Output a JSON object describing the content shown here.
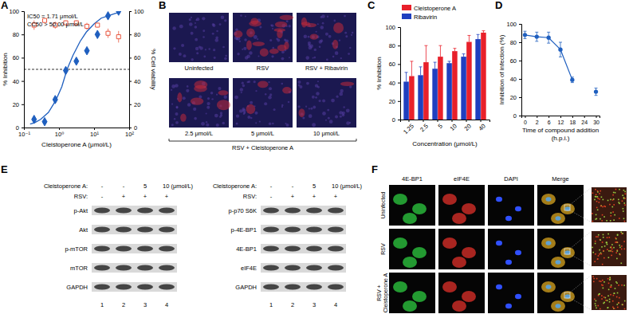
{
  "panel_labels": [
    "A",
    "B",
    "C",
    "D",
    "E",
    "F"
  ],
  "chart_data": [
    {
      "type": "scatter",
      "log": "x",
      "xlim": [
        0.1,
        100
      ],
      "xticks": [
        {
          "value": 0.1,
          "label": "10⁻¹"
        },
        {
          "value": 1,
          "label": "10⁰"
        },
        {
          "value": 10,
          "label": "10¹"
        },
        {
          "value": 100,
          "label": "10²"
        }
      ],
      "ylim": [
        0,
        100
      ],
      "yticks": [
        0,
        20,
        40,
        60,
        80,
        100
      ],
      "y2lim": [
        0,
        100
      ],
      "y2ticks": [
        0,
        20,
        40,
        60,
        80,
        100
      ],
      "x_label": "Cleistoperone A (μmol/L)",
      "y_label": "% Inhibition",
      "y2_label": "% Cell viability",
      "annotations": [
        "IC50 = 1.71 μmol/L",
        "CC50 > 50.00 μmol/L"
      ],
      "reference_line": 50,
      "series": [
        {
          "type": "scatter",
          "marker": "diamond",
          "color": "#1f5fbf",
          "x": [
            0.195,
            0.39,
            0.78,
            1.56,
            3.125,
            6.25,
            12.5,
            25,
            50
          ],
          "values": [
            7,
            5,
            24,
            49,
            57,
            66,
            80,
            96,
            100
          ],
          "errors": [
            2,
            2,
            3,
            3,
            2,
            2,
            2,
            2,
            1
          ]
        },
        {
          "type": "line",
          "color": "#1f5fbf",
          "x": [
            0.15,
            0.2,
            0.3,
            0.5,
            0.8,
            1.2,
            1.7,
            2.5,
            4,
            6,
            10,
            16,
            25,
            40,
            55
          ],
          "values": [
            3,
            4,
            7,
            13,
            23,
            35,
            50,
            62,
            74,
            82,
            89,
            94,
            96,
            98,
            99
          ]
        },
        {
          "type": "scatter",
          "marker": "open_square",
          "color": "#e8553e",
          "axis": "y2",
          "x": [
            0.195,
            0.39,
            0.78,
            1.56,
            3.125,
            6.25,
            12.5,
            25,
            50
          ],
          "values": [
            88,
            92,
            88,
            90,
            90,
            87,
            88,
            81,
            78
          ],
          "errors": [
            4,
            2,
            3,
            2,
            2,
            3,
            2,
            4,
            5
          ]
        }
      ]
    },
    {
      "type": "bar",
      "legend": "top-left",
      "categories": [
        "1.25",
        "2.5",
        "5",
        "10",
        "20",
        "40"
      ],
      "series": [
        {
          "name": "Cleistoperone A",
          "color": "#e8202a",
          "values": [
            47,
            62,
            68,
            74,
            84,
            94
          ],
          "errors": [
            16,
            18,
            12,
            3,
            7,
            2
          ]
        },
        {
          "name": "Ribavirin",
          "color": "#1f3fbf",
          "values": [
            41,
            48,
            55,
            61,
            68,
            87
          ],
          "errors": [
            10,
            9,
            7,
            2,
            3,
            5
          ]
        }
      ],
      "ylim": [
        0,
        100
      ],
      "yticks": [
        0,
        20,
        40,
        60,
        80,
        100
      ],
      "x_label": "Concentration (μmol/L)",
      "y_label": "% Inhibition"
    },
    {
      "type": "line",
      "marker": "circle",
      "color": "#1f5fbf",
      "categories": [
        "0",
        "2",
        "6",
        "12",
        "18",
        "24",
        "30"
      ],
      "values": [
        88,
        86,
        85,
        72,
        39,
        null,
        26
      ],
      "errors": [
        4,
        5,
        6,
        8,
        3,
        null,
        4
      ],
      "ylim": [
        0,
        100
      ],
      "yticks": [
        0,
        20,
        40,
        60,
        80,
        100
      ],
      "x_label": "Time of compound addition (h.p.i.)",
      "y_label": "Inhibition of infection (%)"
    }
  ],
  "panel_b": {
    "images": [
      "Uninfected",
      "RSV",
      "RSV + Ribavirin",
      "2.5 μmol/L",
      "5 μmol/L",
      "10 μmol/L"
    ],
    "group_label": "RSV + Cleistoperone A"
  },
  "panel_e": {
    "blots": [
      {
        "header_rows": [
          {
            "label": "Cleistoperone A:",
            "lanes": [
              "-",
              "-",
              "5",
              "10 (μmol/L)"
            ]
          },
          {
            "label": "RSV:",
            "lanes": [
              "-",
              "+",
              "+",
              "+"
            ]
          }
        ],
        "bands": [
          "p-Akt",
          "Akt",
          "p-mTOR",
          "mTOR",
          "GAPDH"
        ]
      },
      {
        "header_rows": [
          {
            "label": "Cleistoperone A:",
            "lanes": [
              "-",
              "-",
              "5",
              "10 (μmol/L)"
            ]
          },
          {
            "label": "RSV:",
            "lanes": [
              "-",
              "+",
              "+",
              "+"
            ]
          }
        ],
        "bands": [
          "p-p70 S6K",
          "p-4E-BP1",
          "4E-BP1",
          "eIF4E",
          "GAPDH"
        ]
      }
    ],
    "lane_numbers": [
      1,
      2,
      3,
      4
    ]
  },
  "panel_f": {
    "columns": [
      "4E-BP1",
      "eIF4E",
      "DAPI",
      "Merge"
    ],
    "rows": [
      "Uninfected",
      "RSV",
      "RSV + Cleistoperone A"
    ]
  }
}
